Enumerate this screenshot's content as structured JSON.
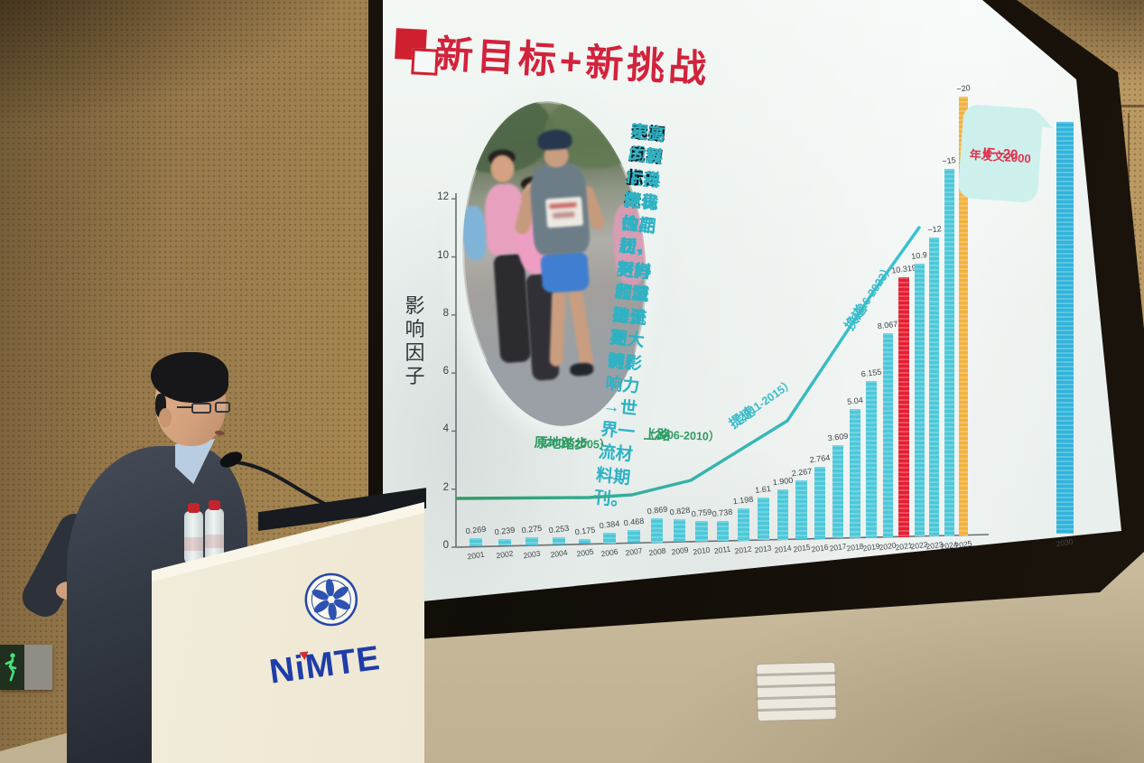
{
  "scene": {
    "podium": {
      "logo": "NiMTE"
    },
    "exit_sign": {
      "type": "emergency-exit-pictogram"
    }
  },
  "slide": {
    "title": "新目标+新挑战",
    "goals_segments": [
      {
        "emph": true,
        "text": "已完成初步目标："
      },
      {
        "emph": false,
        "text": "期刊发展就像跑马拉松，努力和坚持是关键！"
      },
      {
        "emph": true,
        "text": "中期目标："
      },
      {
        "emph": false,
        "text": "中国材料学科代表性期刊、材料领域主流期刊。"
      },
      {
        "emph": true,
        "text": "远期目标："
      },
      {
        "emph": false,
        "text": "更高的IF，更优的品质，更好的口碑，更大的影响力→世界一流材料期刊。"
      }
    ],
    "callout": {
      "line1": "IF~20",
      "line2": "年发文2000"
    }
  },
  "chart_data": {
    "type": "bar",
    "title": "",
    "xlabel": "",
    "ylabel": "影响因子",
    "ylim": [
      0,
      12
    ],
    "yticks": [
      0,
      2,
      4,
      6,
      8,
      10,
      12
    ],
    "grid": false,
    "legend": null,
    "x": [
      "2001",
      "2002",
      "2003",
      "2004",
      "2005",
      "2006",
      "2007",
      "2008",
      "2009",
      "2010",
      "2011",
      "2012",
      "2013",
      "2014",
      "2015",
      "2016",
      "2017",
      "2018",
      "2019",
      "2020",
      "2021",
      "2022",
      "2023",
      "2024",
      "2025",
      "2030"
    ],
    "values": [
      0.269,
      0.239,
      0.275,
      0.253,
      0.175,
      0.384,
      0.468,
      0.869,
      0.828,
      0.759,
      0.738,
      1.198,
      1.61,
      1.9,
      2.267,
      2.764,
      3.609,
      5.04,
      6.155,
      8.067,
      10.319,
      10.9,
      12,
      15,
      20,
      null
    ],
    "labels": [
      "0.269",
      "0.239",
      "0.275",
      "0.253",
      "0.175",
      "0.384",
      "0.468",
      "0.869",
      "0.828",
      "0.759",
      "0.738",
      "1.198",
      "1.61",
      "1.900",
      "2.267",
      "2.764",
      "3.609",
      "5.04",
      "6.155",
      "8.067",
      "10.319",
      "10.9",
      "~12",
      "~15",
      "~20",
      ""
    ],
    "bar_roles": [
      "normal",
      "normal",
      "normal",
      "normal",
      "normal",
      "normal",
      "normal",
      "normal",
      "normal",
      "normal",
      "normal",
      "normal",
      "normal",
      "normal",
      "normal",
      "normal",
      "normal",
      "normal",
      "normal",
      "normal",
      "highlight-red",
      "normal",
      "normal",
      "normal",
      "target-orange",
      "future-blue"
    ],
    "colors": {
      "normal": "#4cc8d9",
      "highlight-red": "#e51f33",
      "target-orange": "#f2b23e",
      "future-blue": "#31b4da",
      "line_green": "#2f9a63",
      "line_teal": "#39c2d4"
    },
    "phases": [
      {
        "label": "原地踏步",
        "years": "（2001-2005）",
        "color": "#2f9a63"
      },
      {
        "label": "上路",
        "years": "（2006-2010）",
        "color": "#2f9a63"
      },
      {
        "label": "提速",
        "years": "（2011-2015）",
        "color": "#39bccb"
      },
      {
        "label": "换道",
        "years": "（2016-2023）",
        "color": "#39bccb"
      }
    ],
    "annotation_callout": {
      "line1": "IF~20",
      "line2": "年发文2000"
    }
  }
}
